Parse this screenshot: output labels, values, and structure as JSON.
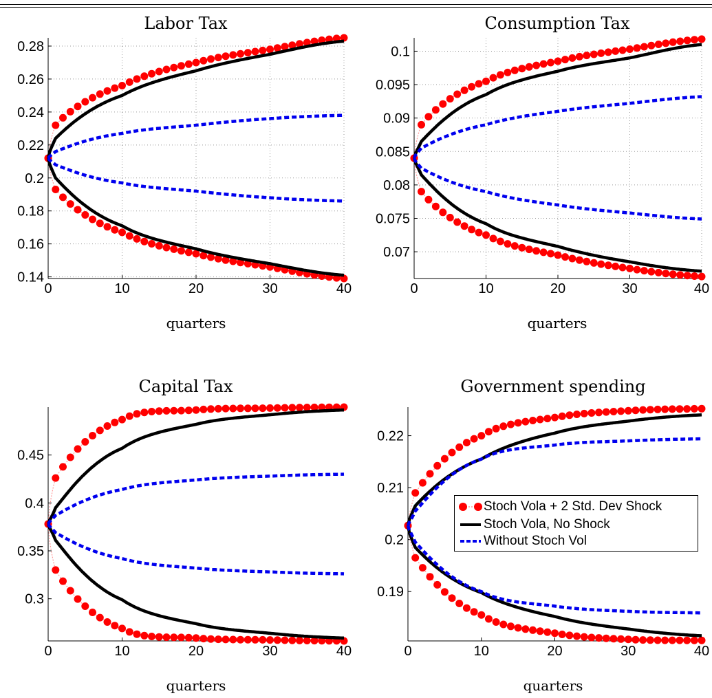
{
  "legend": {
    "shock": "Stoch Vola + 2 Std. Dev Shock",
    "noshock": "Stoch Vola, No Shock",
    "novol": "Without Stoch Vol"
  },
  "colors": {
    "shock": "#ff0000",
    "noshock": "#000000",
    "novol": "#0000ee"
  },
  "chart_data": [
    {
      "type": "line",
      "title": "Labor Tax",
      "xlabel": "quarters",
      "ylabel": "",
      "xlim": [
        0,
        40
      ],
      "ylim": [
        0.139,
        0.285
      ],
      "xticks": [
        0,
        10,
        20,
        30,
        40
      ],
      "yticks": [
        0.14,
        0.16,
        0.18,
        0.2,
        0.22,
        0.24,
        0.26,
        0.28
      ],
      "ytick_labels": [
        "0.14",
        "0.16",
        "0.18",
        "0.2",
        "0.22",
        "0.24",
        "0.26",
        "0.28"
      ],
      "grid": true,
      "x0_value": 0.212,
      "series": [
        {
          "role": "shock",
          "values_upper": {
            "x": [
              1,
              10,
              20,
              30,
              40
            ],
            "y": [
              0.232,
              0.256,
              0.27,
              0.278,
              0.285
            ]
          },
          "values_lower": {
            "x": [
              1,
              10,
              20,
              30,
              40
            ],
            "y": [
              0.193,
              0.167,
              0.154,
              0.146,
              0.139
            ]
          }
        },
        {
          "role": "noshock",
          "values_upper": {
            "x": [
              1,
              10,
              20,
              30,
              40
            ],
            "y": [
              0.224,
              0.25,
              0.265,
              0.275,
              0.283
            ]
          },
          "values_lower": {
            "x": [
              1,
              10,
              20,
              30,
              40
            ],
            "y": [
              0.2,
              0.171,
              0.157,
              0.148,
              0.141
            ]
          }
        },
        {
          "role": "novol",
          "values_upper": {
            "x": [
              1,
              10,
              20,
              30,
              40
            ],
            "y": [
              0.216,
              0.227,
              0.232,
              0.236,
              0.238
            ]
          },
          "values_lower": {
            "x": [
              1,
              10,
              20,
              30,
              40
            ],
            "y": [
              0.208,
              0.197,
              0.192,
              0.188,
              0.186
            ]
          }
        }
      ]
    },
    {
      "type": "line",
      "title": "Consumption Tax",
      "xlabel": "quarters",
      "ylabel": "",
      "xlim": [
        0,
        40
      ],
      "ylim": [
        0.066,
        0.102
      ],
      "xticks": [
        0,
        10,
        20,
        30,
        40
      ],
      "yticks": [
        0.07,
        0.075,
        0.08,
        0.085,
        0.09,
        0.095,
        0.1
      ],
      "ytick_labels": [
        "0.07",
        "0.075",
        "0.08",
        "0.085",
        "0.09",
        "0.095",
        "0.1"
      ],
      "grid": true,
      "x0_value": 0.084,
      "series": [
        {
          "role": "shock",
          "values_upper": {
            "x": [
              1,
              10,
              20,
              30,
              40
            ],
            "y": [
              0.089,
              0.0955,
              0.0985,
              0.1003,
              0.1018
            ]
          },
          "values_lower": {
            "x": [
              1,
              10,
              20,
              30,
              40
            ],
            "y": [
              0.079,
              0.0725,
              0.0695,
              0.0675,
              0.0663
            ]
          }
        },
        {
          "role": "noshock",
          "values_upper": {
            "x": [
              1,
              10,
              20,
              30,
              40
            ],
            "y": [
              0.0865,
              0.0935,
              0.097,
              0.099,
              0.101
            ]
          },
          "values_lower": {
            "x": [
              1,
              10,
              20,
              30,
              40
            ],
            "y": [
              0.0815,
              0.0742,
              0.0708,
              0.0685,
              0.0671
            ]
          }
        },
        {
          "role": "novol",
          "values_upper": {
            "x": [
              1,
              10,
              20,
              30,
              40
            ],
            "y": [
              0.0855,
              0.089,
              0.091,
              0.0922,
              0.0932
            ]
          },
          "values_lower": {
            "x": [
              1,
              10,
              20,
              30,
              40
            ],
            "y": [
              0.0825,
              0.079,
              0.077,
              0.0758,
              0.0749
            ]
          }
        }
      ]
    },
    {
      "type": "line",
      "title": "Capital Tax",
      "xlabel": "quarters",
      "ylabel": "",
      "xlim": [
        0,
        40
      ],
      "ylim": [
        0.256,
        0.5
      ],
      "xticks": [
        0,
        10,
        20,
        30,
        40
      ],
      "yticks": [
        0.3,
        0.35,
        0.4,
        0.45
      ],
      "ytick_labels": [
        "0.3",
        "0.35",
        "0.4",
        "0.45"
      ],
      "grid": false,
      "x0_value": 0.378,
      "series": [
        {
          "role": "shock",
          "values_upper": {
            "x": [
              1,
              10,
              20,
              30,
              40
            ],
            "y": [
              0.426,
              0.487,
              0.497,
              0.499,
              0.5
            ]
          },
          "values_lower": {
            "x": [
              1,
              10,
              20,
              30,
              40
            ],
            "y": [
              0.33,
              0.269,
              0.259,
              0.257,
              0.256
            ]
          }
        },
        {
          "role": "noshock",
          "values_upper": {
            "x": [
              1,
              10,
              20,
              30,
              40
            ],
            "y": [
              0.395,
              0.457,
              0.482,
              0.492,
              0.497
            ]
          },
          "values_lower": {
            "x": [
              1,
              10,
              20,
              30,
              40
            ],
            "y": [
              0.361,
              0.299,
              0.274,
              0.264,
              0.259
            ]
          }
        },
        {
          "role": "novol",
          "values_upper": {
            "x": [
              1,
              10,
              20,
              30,
              40
            ],
            "y": [
              0.387,
              0.414,
              0.424,
              0.428,
              0.43
            ]
          },
          "values_lower": {
            "x": [
              1,
              10,
              20,
              30,
              40
            ],
            "y": [
              0.369,
              0.342,
              0.332,
              0.328,
              0.326
            ]
          }
        }
      ]
    },
    {
      "type": "line",
      "title": "Government spending",
      "xlabel": "quarters",
      "ylabel": "",
      "xlim": [
        0,
        40
      ],
      "ylim": [
        0.1805,
        0.2255
      ],
      "xticks": [
        0,
        10,
        20,
        30,
        40
      ],
      "yticks": [
        0.19,
        0.2,
        0.21,
        0.22
      ],
      "ytick_labels": [
        "0.19",
        "0.2",
        "0.21",
        "0.22"
      ],
      "grid": false,
      "x0_value": 0.2027,
      "series": [
        {
          "role": "shock",
          "values_upper": {
            "x": [
              1,
              10,
              20,
              30,
              40
            ],
            "y": [
              0.209,
              0.22,
              0.2235,
              0.2248,
              0.2252
            ]
          },
          "values_lower": {
            "x": [
              1,
              10,
              20,
              30,
              40
            ],
            "y": [
              0.1965,
              0.1855,
              0.182,
              0.1808,
              0.1806
            ]
          }
        },
        {
          "role": "noshock",
          "values_upper": {
            "x": [
              1,
              10,
              20,
              30,
              40
            ],
            "y": [
              0.2065,
              0.2155,
              0.2205,
              0.2228,
              0.224
            ]
          },
          "values_lower": {
            "x": [
              1,
              10,
              20,
              30,
              40
            ],
            "y": [
              0.1985,
              0.1898,
              0.1852,
              0.1828,
              0.1815
            ]
          }
        },
        {
          "role": "novol",
          "values_upper": {
            "x": [
              1,
              10,
              20,
              30,
              40
            ],
            "y": [
              0.2055,
              0.2155,
              0.2182,
              0.219,
              0.2194
            ]
          },
          "values_lower": {
            "x": [
              1,
              10,
              20,
              30,
              40
            ],
            "y": [
              0.1995,
              0.19,
              0.1872,
              0.1862,
              0.1859
            ]
          }
        }
      ]
    }
  ]
}
